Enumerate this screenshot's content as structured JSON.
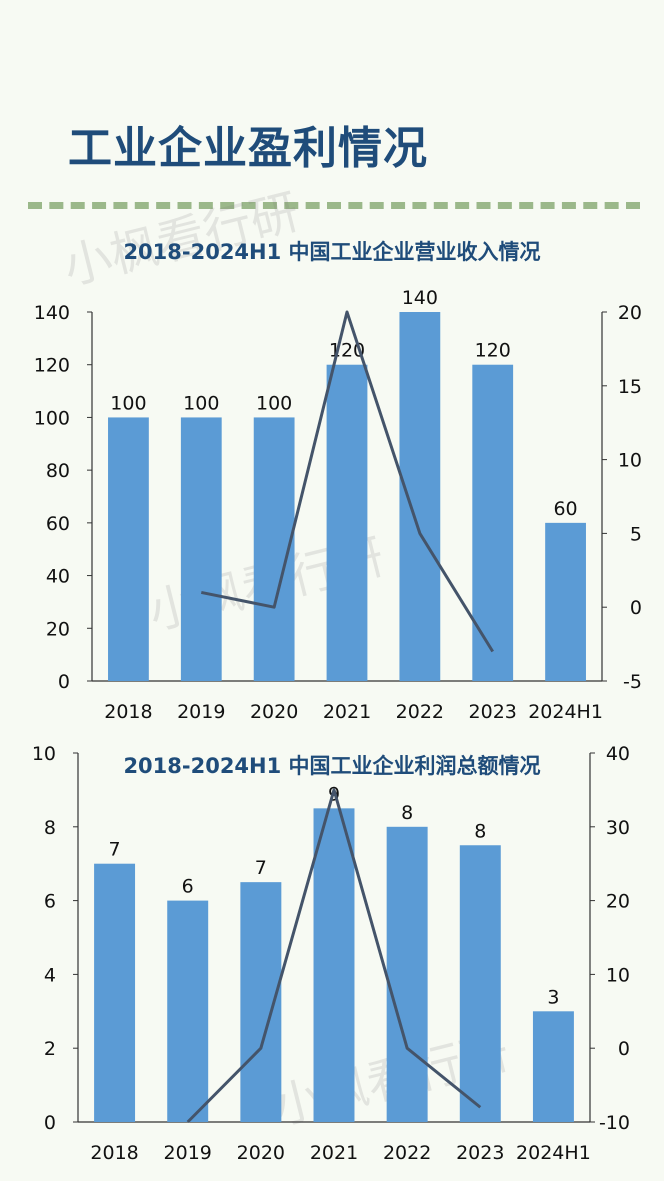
{
  "page": {
    "title": "工业企业盈利情况",
    "watermark": "小枫看行研"
  },
  "colors": {
    "bar": "#5b9bd5",
    "line": "#44546a",
    "title": "#1f4c7a",
    "divider": "#9bb88a",
    "background": "#f7faf3"
  },
  "chart_data": [
    {
      "type": "bar",
      "title": "2018-2024H1 中国工业企业营业收入情况",
      "categories": [
        "2018",
        "2019",
        "2020",
        "2021",
        "2022",
        "2023",
        "2024H1"
      ],
      "series": [
        {
          "axis": "left",
          "type": "bar",
          "values": [
            100,
            100,
            100,
            120,
            140,
            120,
            60
          ],
          "data_labels": [
            "100",
            "100",
            "100",
            "120",
            "140",
            "120",
            "60"
          ]
        },
        {
          "axis": "right",
          "type": "line",
          "values": [
            null,
            1,
            0,
            20,
            5,
            -3,
            null
          ]
        }
      ],
      "ylim": [
        0,
        140
      ],
      "yticks": [
        0,
        20,
        40,
        60,
        80,
        100,
        120,
        140
      ],
      "y2lim": [
        -5,
        20
      ],
      "y2ticks": [
        -5,
        0,
        5,
        10,
        15,
        20
      ],
      "grid": false,
      "legend": "none"
    },
    {
      "type": "bar",
      "title": "2018-2024H1 中国工业企业利润总额情况",
      "categories": [
        "2018",
        "2019",
        "2020",
        "2021",
        "2022",
        "2023",
        "2024H1"
      ],
      "series": [
        {
          "axis": "left",
          "type": "bar",
          "values": [
            7,
            6,
            6.5,
            8.5,
            8,
            7.5,
            3
          ],
          "data_labels": [
            "7",
            "6",
            "7",
            "9",
            "8",
            "8",
            "3"
          ]
        },
        {
          "axis": "right",
          "type": "line",
          "values": [
            null,
            -10,
            0,
            35,
            0,
            -8,
            null
          ]
        }
      ],
      "ylim": [
        0,
        10
      ],
      "yticks": [
        0,
        2,
        4,
        6,
        8,
        10
      ],
      "y2lim": [
        -10,
        40
      ],
      "y2ticks": [
        -10,
        0,
        10,
        20,
        30,
        40
      ],
      "grid": false,
      "legend": "none"
    }
  ]
}
